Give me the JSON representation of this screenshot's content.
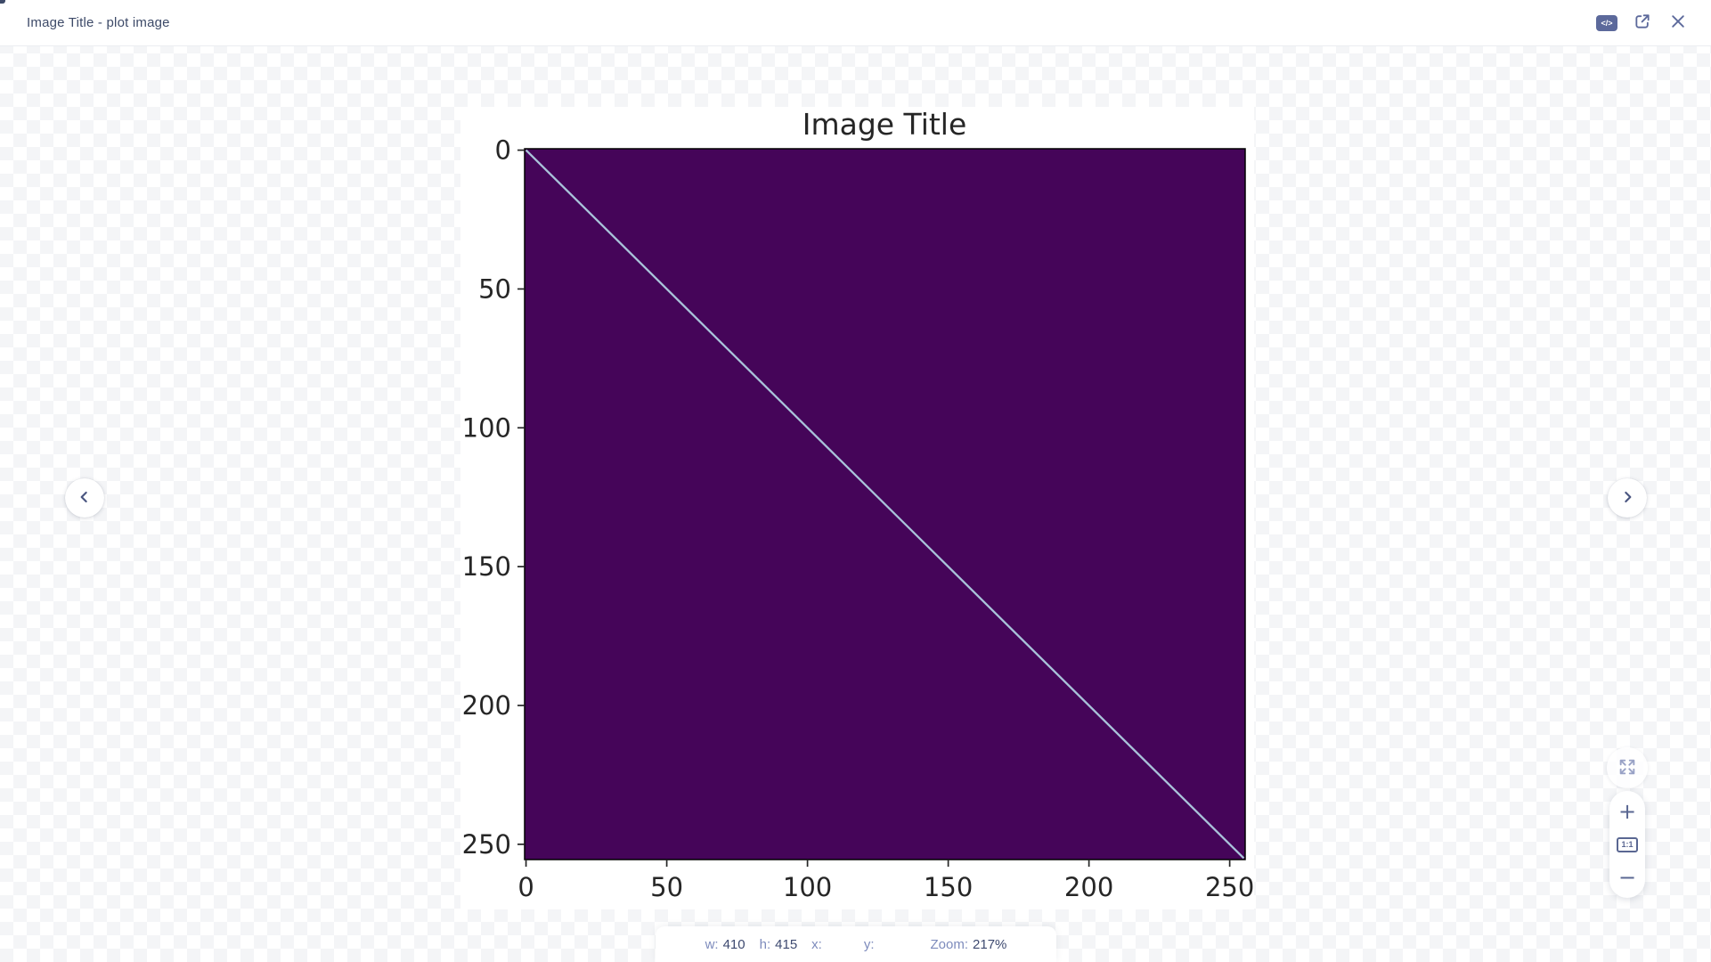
{
  "header": {
    "title": "Image Title - plot image",
    "code_button_label": "</>"
  },
  "zoom_controls": {
    "zoom_in_label": "+",
    "actual_size_label": "1:1",
    "zoom_out_label": "−"
  },
  "status_bar": {
    "width_label": "w:",
    "width_value": "410",
    "height_label": "h:",
    "height_value": "415",
    "x_label": "x:",
    "x_value": "",
    "y_label": "y:",
    "y_value": "",
    "zoom_label": "Zoom:",
    "zoom_value": "217%"
  },
  "chart_data": {
    "type": "heatmap",
    "title": "Image Title",
    "xlabel": "",
    "ylabel": "",
    "x_ticks": [
      0,
      50,
      100,
      150,
      200,
      250
    ],
    "y_ticks": [
      0,
      50,
      100,
      150,
      200,
      250
    ],
    "xlim": [
      -0.5,
      255.5
    ],
    "ylim": [
      255.5,
      -0.5
    ],
    "grid": false,
    "legend": false,
    "diagonal": {
      "from": [
        0,
        0
      ],
      "to": [
        255,
        255
      ]
    },
    "colors": {
      "background": "#450559",
      "diagonal": "#a9c3da",
      "spine": "#000000",
      "text": "#262626"
    },
    "data_description": "256x256 matrix shown with dark-purple (viridis minimum) background and a single thin light diagonal line of high values running from pixel (0,0) to pixel (255,255) — an identity-matrix style image"
  }
}
